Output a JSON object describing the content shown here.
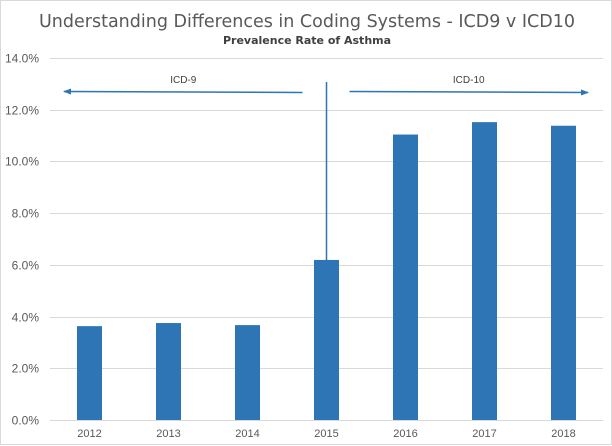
{
  "chart_data": {
    "type": "bar",
    "title": "Understanding Differences in Coding Systems - ICD9 v ICD10",
    "subtitle": "Prevalence Rate of Asthma",
    "xlabel": "",
    "ylabel": "",
    "categories": [
      "2012",
      "2013",
      "2014",
      "2015",
      "2016",
      "2017",
      "2018"
    ],
    "values": [
      3.63,
      3.75,
      3.67,
      6.19,
      11.04,
      11.52,
      11.38
    ],
    "value_unit": "percent",
    "ylim": [
      0,
      14
    ],
    "yticks": [
      0,
      2,
      4,
      6,
      8,
      10,
      12,
      14
    ],
    "ytick_labels": [
      "0.0%",
      "2.0%",
      "4.0%",
      "6.0%",
      "8.0%",
      "10.0%",
      "12.0%",
      "14.0%"
    ],
    "grid": true,
    "legend": "none",
    "bar_color": "#2E75B6",
    "annotations": [
      {
        "text": "ICD-9",
        "type": "arrow-left",
        "from_category": "2015",
        "to_category": "2012"
      },
      {
        "text": "ICD-10",
        "type": "arrow-right",
        "from_category": "2015",
        "to_category": "2018"
      },
      {
        "text": "",
        "type": "divider-line",
        "at_category": "2015"
      }
    ],
    "annotation_color": "#2E75B6"
  }
}
